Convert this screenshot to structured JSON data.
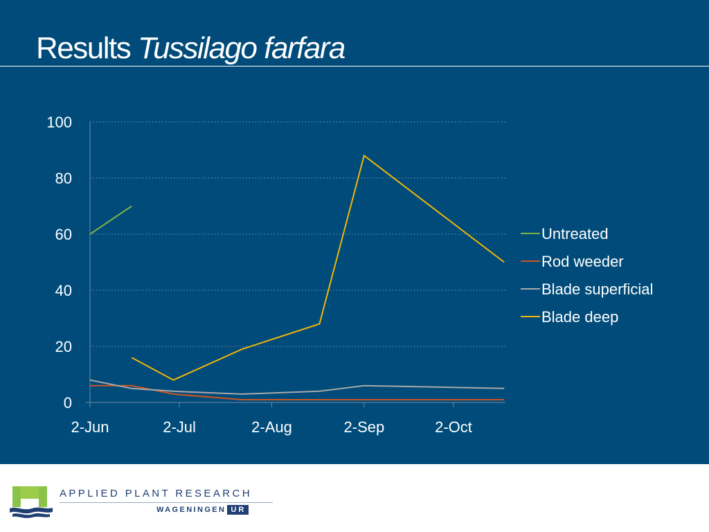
{
  "slide": {
    "title_plain": "Results",
    "title_italic": "Tussilago farfara"
  },
  "footer": {
    "org_name": "APPLIED PLANT RESEARCH",
    "org_sub_1": "WAGENINGEN",
    "org_sub_2": "UR",
    "logo_icon": "wageningen-ur-logo-icon"
  },
  "chart_data": {
    "type": "line",
    "title": "",
    "xlabel": "",
    "ylabel": "",
    "ylim": [
      0,
      100
    ],
    "yticks": [
      "0",
      "20",
      "40",
      "60",
      "80",
      "100"
    ],
    "xticks": [
      "2-Jun",
      "2-Jul",
      "2-Aug",
      "2-Sep",
      "2-Oct"
    ],
    "grid": "horizontal dotted",
    "legend": "right",
    "series": [
      {
        "name": "Untreated",
        "color": "#7cb342",
        "points": [
          [
            "2-Jun",
            60
          ],
          [
            "16-Jun",
            70
          ]
        ]
      },
      {
        "name": "Rod weeder",
        "color": "#d2551e",
        "points": [
          [
            "2-Jun",
            6
          ],
          [
            "16-Jun",
            6
          ],
          [
            "30-Jun",
            3
          ],
          [
            "23-Jul",
            1
          ],
          [
            "18-Aug",
            1
          ],
          [
            "2-Sep",
            1
          ],
          [
            "19-Oct",
            1
          ]
        ]
      },
      {
        "name": "Blade superficial",
        "color": "#a9a9a9",
        "points": [
          [
            "2-Jun",
            8
          ],
          [
            "16-Jun",
            5
          ],
          [
            "30-Jun",
            4
          ],
          [
            "23-Jul",
            3
          ],
          [
            "18-Aug",
            4
          ],
          [
            "2-Sep",
            6
          ],
          [
            "19-Oct",
            5
          ]
        ]
      },
      {
        "name": "Blade deep",
        "color": "#f2b705",
        "points": [
          [
            "16-Jun",
            16
          ],
          [
            "30-Jun",
            8
          ],
          [
            "23-Jul",
            19
          ],
          [
            "18-Aug",
            28
          ],
          [
            "2-Sep",
            88
          ],
          [
            "19-Oct",
            50
          ]
        ]
      }
    ]
  }
}
